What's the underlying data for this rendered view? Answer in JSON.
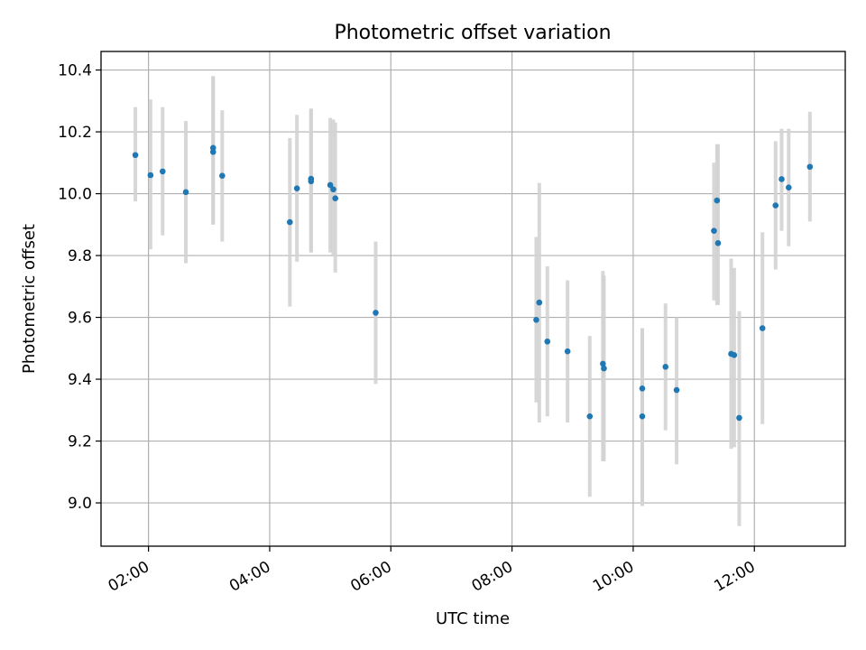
{
  "chart_data": {
    "type": "scatter",
    "title": "Photometric offset variation",
    "xlabel": "UTC time",
    "ylabel": "Photometric offset",
    "x_unit": "time of day (HH:MM)",
    "xlim": [
      "01:13",
      "13:30"
    ],
    "ylim": [
      8.86,
      10.46
    ],
    "x_ticks": [
      "02:00",
      "04:00",
      "06:00",
      "08:00",
      "10:00",
      "12:00"
    ],
    "y_ticks": [
      9.0,
      9.2,
      9.4,
      9.6,
      9.8,
      10.0,
      10.2,
      10.4
    ],
    "grid": true,
    "marker_color": "#1f77b4",
    "errorbar_color": "#d3d3d3",
    "points": [
      {
        "t": "01:47",
        "y": 10.125,
        "err_lo": 9.975,
        "err_hi": 10.28
      },
      {
        "t": "02:02",
        "y": 10.06,
        "err_lo": 9.82,
        "err_hi": 10.305
      },
      {
        "t": "02:14",
        "y": 10.072,
        "err_lo": 9.865,
        "err_hi": 10.28
      },
      {
        "t": "02:37",
        "y": 10.005,
        "err_lo": 9.775,
        "err_hi": 10.235
      },
      {
        "t": "03:04",
        "y": 10.148,
        "err_lo": 9.9,
        "err_hi": 10.38
      },
      {
        "t": "03:04",
        "y": 10.135,
        "err_lo": 9.9,
        "err_hi": 10.38
      },
      {
        "t": "03:13",
        "y": 10.058,
        "err_lo": 9.845,
        "err_hi": 10.27
      },
      {
        "t": "04:20",
        "y": 9.908,
        "err_lo": 9.635,
        "err_hi": 10.18
      },
      {
        "t": "04:27",
        "y": 10.017,
        "err_lo": 9.78,
        "err_hi": 10.255
      },
      {
        "t": "04:41",
        "y": 10.04,
        "err_lo": 9.81,
        "err_hi": 10.275
      },
      {
        "t": "04:41",
        "y": 10.048,
        "err_lo": 9.81,
        "err_hi": 10.275
      },
      {
        "t": "05:00",
        "y": 10.028,
        "err_lo": 9.81,
        "err_hi": 10.245
      },
      {
        "t": "05:03",
        "y": 10.014,
        "err_lo": 9.8,
        "err_hi": 10.24
      },
      {
        "t": "05:05",
        "y": 9.985,
        "err_lo": 9.745,
        "err_hi": 10.23
      },
      {
        "t": "05:45",
        "y": 9.615,
        "err_lo": 9.385,
        "err_hi": 9.845
      },
      {
        "t": "08:24",
        "y": 9.592,
        "err_lo": 9.325,
        "err_hi": 9.86
      },
      {
        "t": "08:27",
        "y": 9.648,
        "err_lo": 9.26,
        "err_hi": 10.035
      },
      {
        "t": "08:35",
        "y": 9.522,
        "err_lo": 9.28,
        "err_hi": 9.765
      },
      {
        "t": "08:55",
        "y": 9.49,
        "err_lo": 9.26,
        "err_hi": 9.72
      },
      {
        "t": "09:17",
        "y": 9.28,
        "err_lo": 9.02,
        "err_hi": 9.54
      },
      {
        "t": "09:30",
        "y": 9.45,
        "err_lo": 9.135,
        "err_hi": 9.75
      },
      {
        "t": "09:31",
        "y": 9.435,
        "err_lo": 9.135,
        "err_hi": 9.735
      },
      {
        "t": "10:09",
        "y": 9.37,
        "err_lo": 8.99,
        "err_hi": 9.565
      },
      {
        "t": "10:09",
        "y": 9.28,
        "err_lo": 8.99,
        "err_hi": 9.565
      },
      {
        "t": "10:32",
        "y": 9.44,
        "err_lo": 9.235,
        "err_hi": 9.645
      },
      {
        "t": "10:43",
        "y": 9.365,
        "err_lo": 9.125,
        "err_hi": 9.6
      },
      {
        "t": "11:20",
        "y": 9.88,
        "err_lo": 9.655,
        "err_hi": 10.1
      },
      {
        "t": "11:23",
        "y": 9.978,
        "err_lo": 9.64,
        "err_hi": 10.16
      },
      {
        "t": "11:24",
        "y": 9.84,
        "err_lo": 9.64,
        "err_hi": 10.16
      },
      {
        "t": "11:37",
        "y": 9.482,
        "err_lo": 9.175,
        "err_hi": 9.79
      },
      {
        "t": "11:40",
        "y": 9.478,
        "err_lo": 9.18,
        "err_hi": 9.76
      },
      {
        "t": "11:45",
        "y": 9.275,
        "err_lo": 8.925,
        "err_hi": 9.62
      },
      {
        "t": "12:08",
        "y": 9.565,
        "err_lo": 9.255,
        "err_hi": 9.875
      },
      {
        "t": "12:21",
        "y": 9.962,
        "err_lo": 9.755,
        "err_hi": 10.17
      },
      {
        "t": "12:27",
        "y": 10.047,
        "err_lo": 9.88,
        "err_hi": 10.21
      },
      {
        "t": "12:34",
        "y": 10.02,
        "err_lo": 9.83,
        "err_hi": 10.21
      },
      {
        "t": "12:55",
        "y": 10.087,
        "err_lo": 9.91,
        "err_hi": 10.265
      }
    ]
  }
}
